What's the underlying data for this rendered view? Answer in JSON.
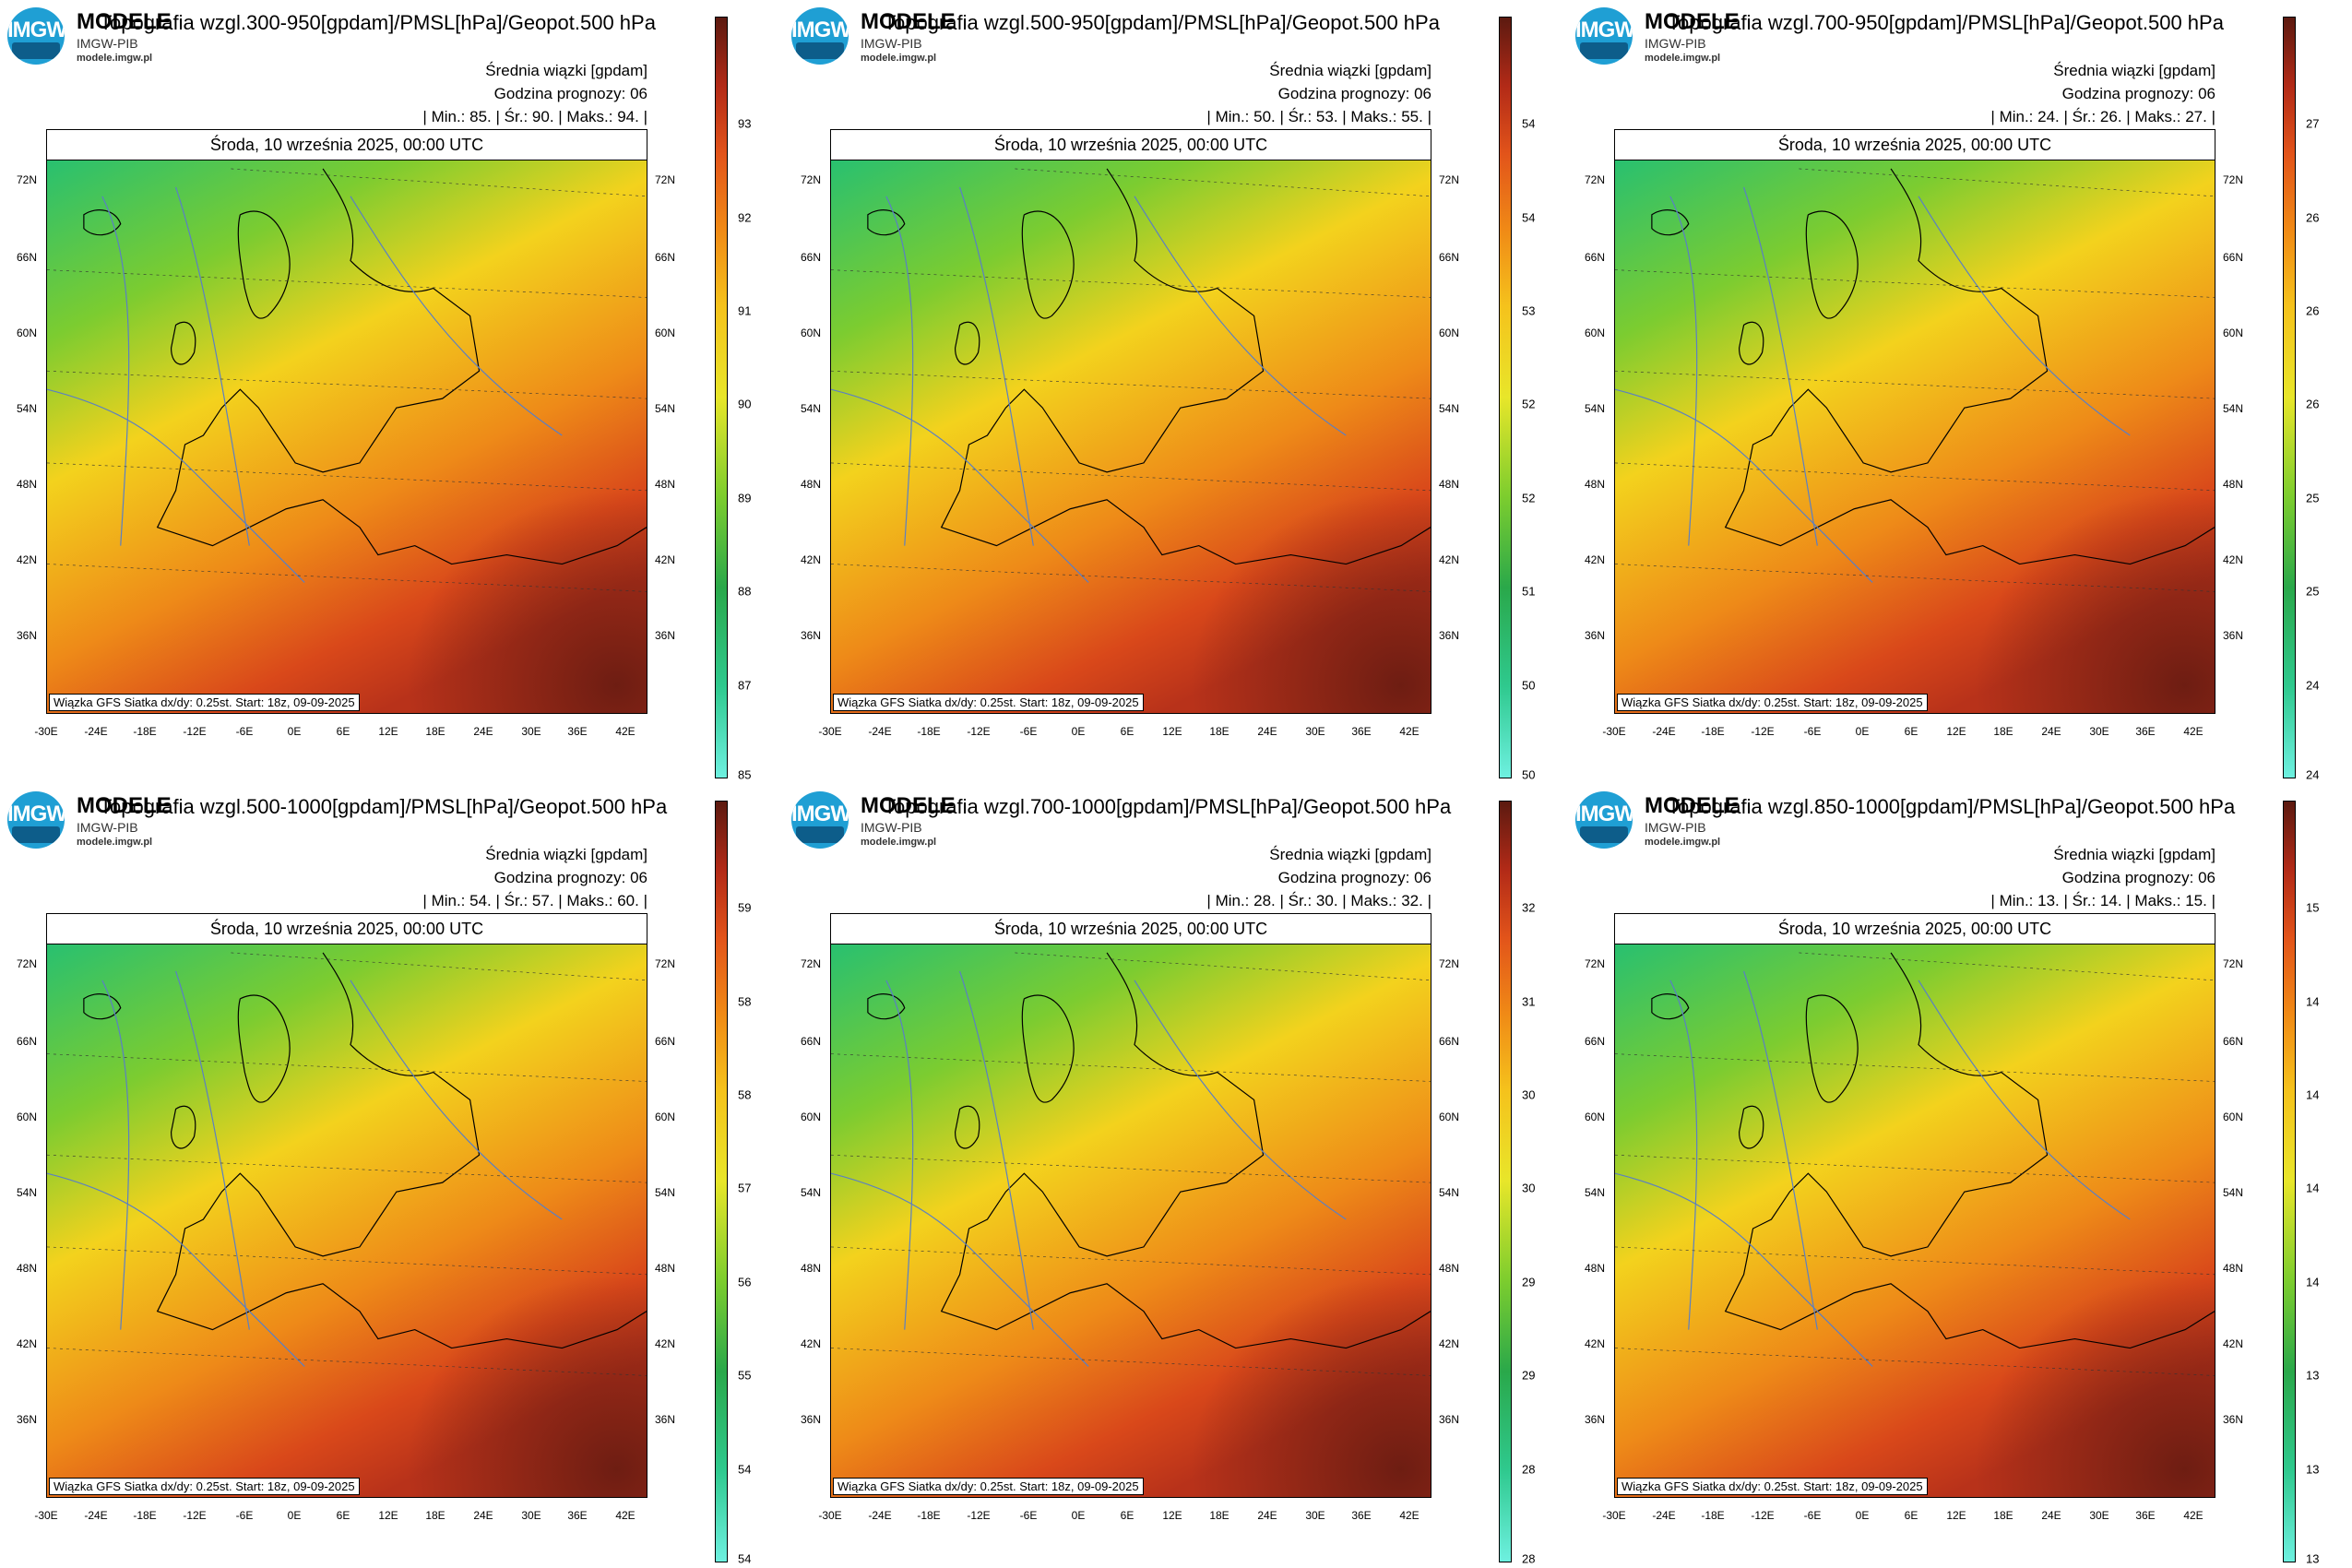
{
  "brand": {
    "line1": "MODELE",
    "line2": "IMGW-PIB",
    "line3": "modele.imgw.pl",
    "logo_text": "IMGW"
  },
  "panels": [
    {
      "title": "Topografia wzgl.300-950[gpdam]/PMSL[hPa]/Geopot.500 hPa",
      "min": "85.",
      "avg": "90.",
      "max": "94.",
      "colorbar_ticks": [
        "93",
        "92",
        "91",
        "90",
        "89",
        "88",
        "87",
        "85"
      ]
    },
    {
      "title": "Topografia wzgl.500-950[gpdam]/PMSL[hPa]/Geopot.500 hPa",
      "min": "50.",
      "avg": "53.",
      "max": "55.",
      "colorbar_ticks": [
        "54",
        "54",
        "53",
        "52",
        "52",
        "51",
        "50",
        "50"
      ]
    },
    {
      "title": "Topografia wzgl.700-950[gpdam]/PMSL[hPa]/Geopot.500 hPa",
      "min": "24.",
      "avg": "26.",
      "max": "27.",
      "colorbar_ticks": [
        "27",
        "26",
        "26",
        "26",
        "25",
        "25",
        "24",
        "24"
      ]
    },
    {
      "title": "Topografia wzgl.500-1000[gpdam]/PMSL[hPa]/Geopot.500 hPa",
      "min": "54.",
      "avg": "57.",
      "max": "60.",
      "colorbar_ticks": [
        "59",
        "58",
        "58",
        "57",
        "56",
        "55",
        "54",
        "54"
      ]
    },
    {
      "title": "Topografia wzgl.700-1000[gpdam]/PMSL[hPa]/Geopot.500 hPa",
      "min": "28.",
      "avg": "30.",
      "max": "32.",
      "colorbar_ticks": [
        "32",
        "31",
        "30",
        "30",
        "29",
        "29",
        "28",
        "28"
      ]
    },
    {
      "title": "Topografia wzgl.850-1000[gpdam]/PMSL[hPa]/Geopot.500 hPa",
      "min": "13.",
      "avg": "14.",
      "max": "15.",
      "colorbar_ticks": [
        "15",
        "14",
        "14",
        "14",
        "14",
        "13",
        "13",
        "13"
      ]
    }
  ],
  "common": {
    "subtitle": "Średnia wiązki [gpdam]",
    "forecast_hour": "Godzina prognozy: 06",
    "min_label": "Min.:",
    "avg_label": "Śr.:",
    "max_label": "Maks.:",
    "date": "Środa, 10 września 2025, 00:00 UTC",
    "source": "Wiązka GFS Siatka dx/dy: 0.25st. Start: 18z, 09-09-2025"
  },
  "lat_labels": [
    "72N",
    "66N",
    "60N",
    "54N",
    "48N",
    "42N",
    "36N"
  ],
  "lon_labels": [
    "-30E",
    "-24E",
    "-18E",
    "-12E",
    "-6E",
    "0E",
    "6E",
    "12E",
    "18E",
    "24E",
    "30E",
    "36E",
    "42E"
  ],
  "colors": {
    "cold": "#36c96b",
    "mid": "#f4d21e",
    "warm": "#e0561a",
    "hot": "#7a1f12",
    "isobar": "#5a7fc4"
  }
}
